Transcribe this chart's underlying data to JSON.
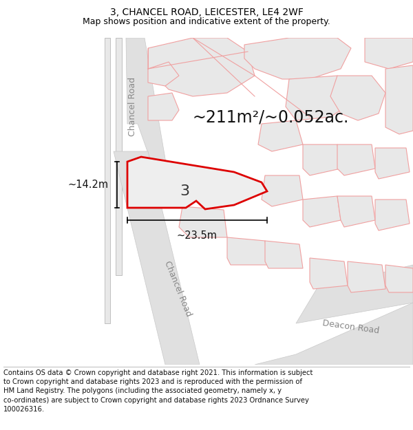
{
  "title": "3, CHANCEL ROAD, LEICESTER, LE4 2WF",
  "subtitle": "Map shows position and indicative extent of the property.",
  "footer": "Contains OS data © Crown copyright and database right 2021. This information is subject to Crown copyright and database rights 2023 and is reproduced with the permission of HM Land Registry. The polygons (including the associated geometry, namely x, y co-ordinates) are subject to Crown copyright and database rights 2023 Ordnance Survey 100026316.",
  "area_label": "~211m²/~0.052ac.",
  "number_label": "3",
  "dim_h": "~14.2m",
  "dim_w": "~23.5m",
  "road_label_upper": "Chancel Road",
  "road_label_lower": "Chancel Road",
  "road_label_deacon": "Deacon Road",
  "bg_color": "#ffffff",
  "block_fill": "#e8e8e8",
  "block_edge": "#f0a0a0",
  "road_fill": "#e0e0e0",
  "road_edge": "#c8c8c8",
  "red": "#dd0000",
  "prop_fill": "#eeeeee",
  "title_fontsize": 10,
  "subtitle_fontsize": 9,
  "footer_fontsize": 7.2,
  "area_fontsize": 17,
  "number_fontsize": 16,
  "dim_fontsize": 10.5,
  "road_label_fontsize": 9
}
